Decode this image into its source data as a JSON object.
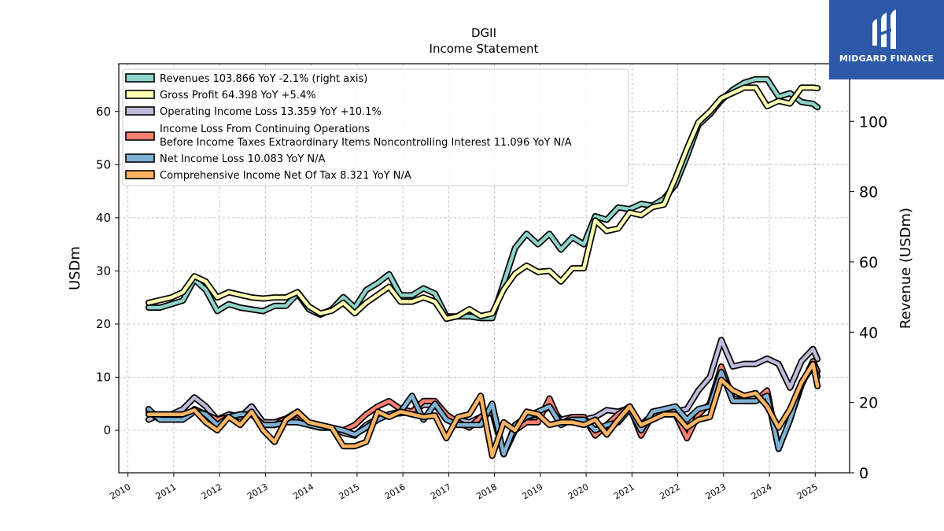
{
  "branding": {
    "name": "MIDGARD FINANCE",
    "color": "#2d5aa8"
  },
  "chart_data": {
    "type": "line",
    "title": "DGII",
    "subtitle": "Income Statement",
    "ylabel": "USDm",
    "y2label": "Revenue (USDm)",
    "ylim": [
      -8,
      69
    ],
    "y2lim": [
      0,
      116.4
    ],
    "yticks": [
      0,
      10,
      20,
      30,
      40,
      50,
      60
    ],
    "y2ticks": [
      0,
      20,
      40,
      60,
      80,
      100
    ],
    "xlim": [
      2009.8,
      2025.75
    ],
    "xticks": [
      "2010",
      "2011",
      "2012",
      "2013",
      "2014",
      "2015",
      "2016",
      "2017",
      "2018",
      "2019",
      "2020",
      "2021",
      "2022",
      "2023",
      "2024",
      "2025"
    ],
    "grid": true,
    "legend_position": "top-left",
    "x": [
      2010.45,
      2010.7,
      2010.95,
      2011.2,
      2011.45,
      2011.7,
      2011.95,
      2012.2,
      2012.45,
      2012.7,
      2012.95,
      2013.2,
      2013.45,
      2013.7,
      2013.95,
      2014.2,
      2014.45,
      2014.7,
      2014.95,
      2015.2,
      2015.45,
      2015.7,
      2015.95,
      2016.2,
      2016.45,
      2016.7,
      2016.95,
      2017.2,
      2017.45,
      2017.7,
      2017.95,
      2018.2,
      2018.45,
      2018.7,
      2018.95,
      2019.2,
      2019.45,
      2019.7,
      2019.95,
      2020.2,
      2020.45,
      2020.7,
      2020.95,
      2021.2,
      2021.45,
      2021.7,
      2021.95,
      2022.2,
      2022.45,
      2022.7,
      2022.95,
      2023.2,
      2023.45,
      2023.7,
      2023.95,
      2024.2,
      2024.45,
      2024.7,
      2024.95,
      2025.05
    ],
    "series": [
      {
        "name": "Revenues",
        "legend": "Revenues  103.866 YoY -2.1% (right axis)",
        "axis": "right",
        "color": "#8dd3c7",
        "values": [
          47,
          47,
          48,
          49,
          55,
          52,
          46,
          48,
          47,
          46.5,
          46,
          47.5,
          47.5,
          51,
          46.5,
          45,
          46.5,
          50,
          47,
          52,
          54,
          56.5,
          50.5,
          50.5,
          52.5,
          51,
          44.5,
          44.5,
          44.5,
          44,
          44,
          54,
          64,
          68,
          65,
          68,
          63.5,
          67,
          65,
          73,
          72,
          75.5,
          75,
          76.5,
          76,
          78,
          82,
          90,
          99,
          102,
          106,
          109,
          111,
          112,
          112,
          107,
          108,
          105.5,
          105,
          104
        ]
      },
      {
        "name": "Gross Profit",
        "legend": "Gross Profit  64.398 YoY +5.4%",
        "axis": "left",
        "color": "#ffffb3",
        "values": [
          24,
          24.5,
          25,
          26,
          29,
          28,
          25,
          26,
          25.5,
          25,
          24.8,
          25,
          25,
          26,
          23.3,
          22,
          22.5,
          24,
          22,
          24,
          25.5,
          27,
          24.2,
          24.2,
          25,
          24.2,
          21,
          21.5,
          22.8,
          21.5,
          22,
          26.5,
          29.5,
          31,
          29.8,
          30,
          28,
          30.5,
          30.5,
          39.5,
          37.5,
          38,
          41,
          40.5,
          42,
          42.5,
          47.5,
          53,
          58,
          60,
          62.5,
          63.5,
          64.5,
          64.5,
          61,
          62,
          61.5,
          64.5,
          64.5,
          64.4
        ]
      },
      {
        "name": "Operating Income Loss",
        "legend": "Operating Income Loss  13.359 YoY +10.1%",
        "axis": "left",
        "color": "#bebada",
        "values": [
          2,
          3,
          3,
          4,
          6.2,
          4.5,
          2,
          3,
          2.5,
          4.5,
          1.5,
          1.5,
          2.2,
          3.5,
          1,
          0.5,
          0.5,
          -0.5,
          -1,
          1,
          2.2,
          3,
          3.2,
          3.5,
          4.8,
          4.8,
          2.2,
          2,
          1.5,
          2.5,
          4,
          -4.5,
          1,
          2.5,
          3,
          4.5,
          2,
          2.5,
          2,
          2.5,
          3.8,
          3.5,
          4.2,
          1,
          3,
          3.5,
          3.5,
          4,
          7.5,
          10,
          17,
          12,
          12.5,
          12.5,
          13.5,
          12.5,
          8,
          13,
          15.3,
          13.4
        ]
      },
      {
        "name": "Income Loss From Continuing Operations Before Income Taxes Extraordinary Items Noncontrolling Interest",
        "legend_lines": [
          "Income Loss From Continuing Operations",
          "Before Income Taxes Extraordinary Items Noncontrolling Interest  11.096 YoY N/A"
        ],
        "axis": "left",
        "color": "#fb8072",
        "values": [
          3.5,
          2,
          2,
          2,
          4,
          3,
          2,
          2.5,
          3,
          3,
          1,
          1,
          2.2,
          3,
          1,
          0.5,
          0.5,
          0,
          1,
          3,
          4.5,
          5.5,
          4,
          3.5,
          5.5,
          5.5,
          3,
          1.5,
          0.5,
          2.5,
          3.5,
          -4.5,
          0,
          1.5,
          1.5,
          6,
          1,
          2.5,
          2.5,
          -1,
          1,
          3,
          4.5,
          -1,
          3,
          3,
          3,
          -1.5,
          3,
          5,
          12,
          6,
          5.5,
          5.5,
          7.5,
          -3.5,
          2,
          8.5,
          13,
          11.1
        ]
      },
      {
        "name": "Net Income Loss",
        "legend": "Net Income Loss  10.083 YoY N/A",
        "axis": "left",
        "color": "#80b1d3",
        "values": [
          4,
          2,
          2,
          2,
          3.5,
          3,
          1,
          2.5,
          3,
          3,
          1,
          1,
          1.5,
          1.5,
          1,
          0.5,
          0.5,
          0,
          -0.8,
          0.5,
          2,
          3,
          3.5,
          6.5,
          2,
          5,
          2,
          1,
          1,
          1,
          5,
          -4.5,
          1,
          2.5,
          3.5,
          4.5,
          1,
          2,
          2,
          0,
          1,
          1.5,
          4,
          0,
          3.5,
          4,
          4.5,
          2,
          4,
          4.5,
          11,
          5.5,
          5.5,
          5.5,
          6.5,
          -3.5,
          2,
          9,
          12,
          10.1
        ]
      },
      {
        "name": "Comprehensive Income Net Of Tax",
        "legend": "Comprehensive Income Net Of Tax  8.321 YoY N/A",
        "axis": "left",
        "color": "#fdb462",
        "values": [
          3,
          3,
          3,
          3,
          3.8,
          1.5,
          0,
          2.5,
          1,
          3.5,
          0,
          -2.2,
          2,
          3.5,
          1.5,
          1,
          0.5,
          -3,
          -3,
          -2.2,
          3.5,
          2.5,
          3.5,
          3,
          2.5,
          2.8,
          -1.5,
          2.5,
          3,
          6.5,
          -4.8,
          1.5,
          0,
          3.5,
          3,
          1,
          1.5,
          1.5,
          1,
          2,
          -0.8,
          2,
          4.5,
          1,
          2,
          3,
          3,
          0.5,
          2,
          2.5,
          9.5,
          7.5,
          6.5,
          7,
          4.5,
          0.5,
          4,
          9,
          12.5,
          8.3
        ]
      }
    ]
  }
}
